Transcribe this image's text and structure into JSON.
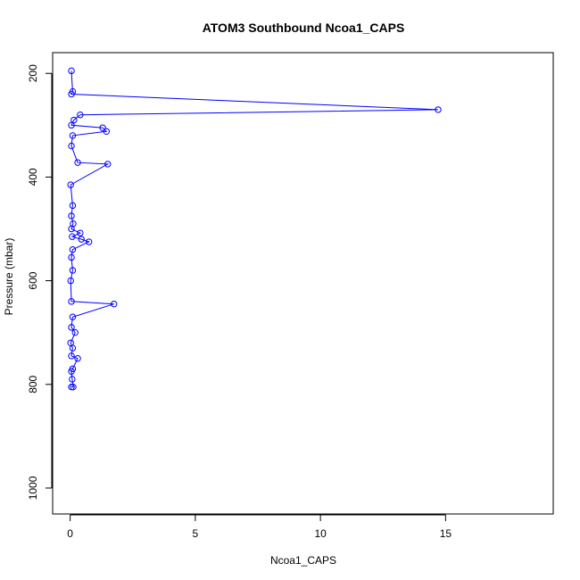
{
  "chart_data": {
    "type": "line",
    "title": "ATOM3 Southbound Ncoa1_CAPS",
    "xlabel": "Ncoa1_CAPS",
    "ylabel": "Pressure (mbar)",
    "xlim": [
      -0.7,
      19.3
    ],
    "ylim": [
      1050,
      160
    ],
    "y_reversed": true,
    "x_ticks": [
      0,
      5,
      10,
      15
    ],
    "y_ticks": [
      200,
      400,
      600,
      800,
      1000
    ],
    "grid": false,
    "legend": "none",
    "color": "#0000ff",
    "marker": "open-circle",
    "series": [
      {
        "values": [
          {
            "x": 0.05,
            "y": 805
          },
          {
            "x": 0.12,
            "y": 805
          },
          {
            "x": 0.08,
            "y": 790
          },
          {
            "x": 0.05,
            "y": 775
          },
          {
            "x": 0.1,
            "y": 770
          },
          {
            "x": 0.3,
            "y": 750
          },
          {
            "x": 0.05,
            "y": 745
          },
          {
            "x": 0.1,
            "y": 730
          },
          {
            "x": 0.02,
            "y": 720
          },
          {
            "x": 0.2,
            "y": 700
          },
          {
            "x": 0.05,
            "y": 690
          },
          {
            "x": 0.1,
            "y": 670
          },
          {
            "x": 1.75,
            "y": 645
          },
          {
            "x": 0.05,
            "y": 640
          },
          {
            "x": 0.02,
            "y": 600
          },
          {
            "x": 0.1,
            "y": 580
          },
          {
            "x": 0.05,
            "y": 555
          },
          {
            "x": 0.1,
            "y": 540
          },
          {
            "x": 0.75,
            "y": 525
          },
          {
            "x": 0.45,
            "y": 520
          },
          {
            "x": 0.08,
            "y": 515
          },
          {
            "x": 0.4,
            "y": 508
          },
          {
            "x": 0.05,
            "y": 500
          },
          {
            "x": 0.12,
            "y": 490
          },
          {
            "x": 0.05,
            "y": 475
          },
          {
            "x": 0.1,
            "y": 455
          },
          {
            "x": 0.02,
            "y": 415
          },
          {
            "x": 1.5,
            "y": 375
          },
          {
            "x": 0.3,
            "y": 372
          },
          {
            "x": 0.05,
            "y": 340
          },
          {
            "x": 0.1,
            "y": 320
          },
          {
            "x": 1.45,
            "y": 312
          },
          {
            "x": 1.3,
            "y": 305
          },
          {
            "x": 0.05,
            "y": 300
          },
          {
            "x": 0.15,
            "y": 290
          },
          {
            "x": 0.4,
            "y": 280
          },
          {
            "x": 14.7,
            "y": 270
          },
          {
            "x": 0.05,
            "y": 240
          },
          {
            "x": 0.1,
            "y": 235
          },
          {
            "x": 0.05,
            "y": 195
          }
        ]
      }
    ]
  }
}
